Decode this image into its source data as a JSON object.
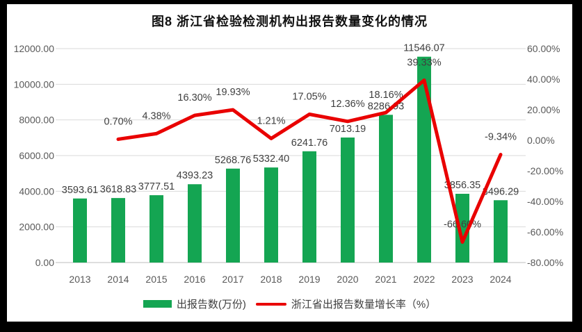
{
  "title": "图8 浙江省检验检测机构出报告数量变化的情况",
  "colors": {
    "background_frame": "#000000",
    "chart_background": "#ffffff",
    "bar_green": "#14A552",
    "line_red": "#E90000",
    "gridline": "#D9D9D9",
    "axis_line": "#C9C9C9",
    "axis_text": "#595959",
    "data_label_text": "#3F3F3F",
    "title_text": "#111111"
  },
  "chart_data": {
    "type": "combo",
    "title": "图8 浙江省检验检测机构出报告数量变化的情况",
    "categories": [
      "2013",
      "2014",
      "2015",
      "2016",
      "2017",
      "2018",
      "2019",
      "2020",
      "2021",
      "2022",
      "2023",
      "2024"
    ],
    "series": [
      {
        "name": "出报告数(万份)",
        "type": "bar",
        "axis": "left",
        "color": "#14A552",
        "values": [
          3593.61,
          3618.83,
          3777.51,
          4393.23,
          5268.76,
          5332.4,
          6241.76,
          7013.19,
          8286.93,
          11546.07,
          3856.35,
          3496.29
        ],
        "labels": [
          "3593.61",
          "3618.83",
          "3777.51",
          "4393.23",
          "5268.76",
          "5332.40",
          "6241.76",
          "7013.19",
          "8286.93",
          "11546.07",
          "3856.35",
          "3496.29"
        ]
      },
      {
        "name": "浙江省出报告数量增长率（%）",
        "type": "line",
        "axis": "right",
        "color": "#E90000",
        "values": [
          null,
          0.7,
          4.38,
          16.3,
          19.93,
          1.21,
          17.05,
          12.36,
          18.16,
          39.33,
          -66.6,
          -9.34
        ],
        "labels": [
          null,
          "0.70%",
          "4.38%",
          "16.30%",
          "19.93%",
          "1.21%",
          "17.05%",
          "12.36%",
          "18.16%",
          "39.33%",
          "-66.60%",
          "-9.34%"
        ]
      }
    ],
    "left_axis": {
      "min": 0,
      "max": 12000,
      "step": 2000,
      "ticks": [
        "0.00",
        "2000.00",
        "4000.00",
        "6000.00",
        "8000.00",
        "10000.00",
        "12000.00"
      ]
    },
    "right_axis": {
      "min": -80,
      "max": 60,
      "step": 20,
      "ticks": [
        "-80.00%",
        "-60.00%",
        "-40.00%",
        "-20.00%",
        "0.00%",
        "20.00%",
        "40.00%",
        "60.00%"
      ]
    },
    "grid": true,
    "legend_position": "bottom"
  },
  "legend": {
    "bar_label": "出报告数(万份)",
    "line_label": "浙江省出报告数量增长率（%）"
  }
}
